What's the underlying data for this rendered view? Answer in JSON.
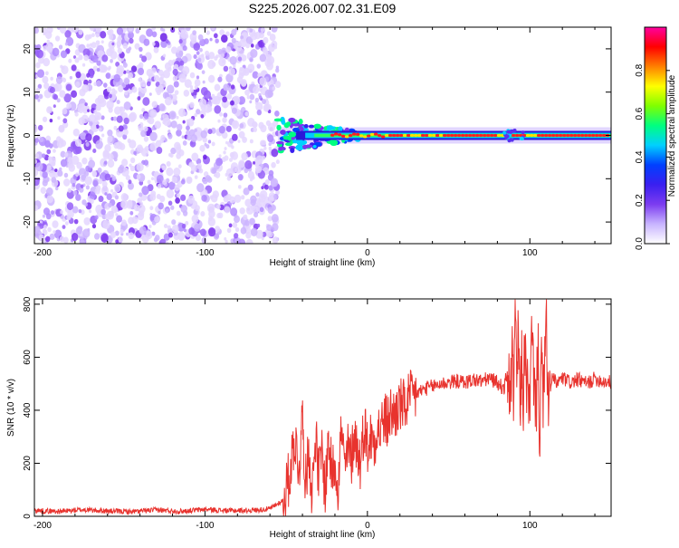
{
  "title": "S225.2026.007.02.31.E09",
  "colors": {
    "snr_line": "#e8332e",
    "axis": "#000000"
  },
  "chart_data": [
    {
      "type": "heatmap",
      "name": "spectrogram",
      "xlabel": "Height of straight line (km)",
      "ylabel": "Frequency (Hz)",
      "xlim": [
        -205,
        150
      ],
      "ylim": [
        -25,
        25
      ],
      "xticks": [
        -200,
        -100,
        0,
        100
      ],
      "yticks": [
        -20,
        -10,
        0,
        10,
        20
      ],
      "noise_region_km": [
        -205,
        -55
      ],
      "signal_start_km": -55,
      "signal_frequency_hz": 0
    },
    {
      "type": "colorbar",
      "name": "amplitude-colorbar",
      "label": "Normalized spectral amplitude",
      "range": [
        0,
        1
      ],
      "ticks": [
        0.0,
        0.2,
        0.4,
        0.6,
        0.8
      ],
      "tick_labels": [
        "0.0",
        "0.2",
        "0.4",
        "0.6",
        "0.8"
      ],
      "colormap": [
        "#ffffff",
        "#c8b4ff",
        "#7c3cf0",
        "#3a1ff0",
        "#0040ff",
        "#00d0ff",
        "#00ff80",
        "#80ff00",
        "#ffff00",
        "#ff8000",
        "#ff0000",
        "#ff00a0"
      ]
    },
    {
      "type": "line",
      "name": "snr",
      "xlabel": "Height of straight line (km)",
      "ylabel": "SNR (10 * v/v)",
      "xlim": [
        -205,
        150
      ],
      "ylim": [
        0,
        820
      ],
      "xticks": [
        -200,
        -100,
        0,
        100
      ],
      "yticks": [
        0,
        200,
        400,
        600,
        800
      ],
      "series": [
        {
          "name": "SNR",
          "x": [
            -205,
            -190,
            -175,
            -160,
            -145,
            -130,
            -115,
            -100,
            -85,
            -70,
            -60,
            -52,
            -48,
            -45,
            -42,
            -40,
            -38,
            -36,
            -34,
            -32,
            -30,
            -28,
            -26,
            -24,
            -22,
            -20,
            -18,
            -16,
            -14,
            -12,
            -10,
            -8,
            -6,
            -4,
            -2,
            0,
            2,
            4,
            6,
            8,
            10,
            12,
            14,
            16,
            18,
            20,
            22,
            24,
            26,
            28,
            30,
            32,
            35,
            40,
            45,
            50,
            55,
            60,
            65,
            70,
            75,
            80,
            84,
            86,
            88,
            89,
            90,
            91,
            92,
            93,
            94,
            95,
            96,
            97,
            98,
            99,
            100,
            101,
            102,
            103,
            104,
            105,
            106,
            107,
            108,
            109,
            110,
            111,
            112,
            113,
            114,
            116,
            118,
            120,
            125,
            130,
            135,
            140,
            145,
            150
          ],
          "values": [
            22,
            18,
            25,
            20,
            17,
            24,
            19,
            26,
            21,
            23,
            28,
            60,
            150,
            300,
            180,
            380,
            120,
            260,
            80,
            320,
            140,
            250,
            90,
            300,
            160,
            210,
            120,
            340,
            170,
            250,
            210,
            320,
            240,
            200,
            360,
            260,
            300,
            280,
            340,
            320,
            370,
            350,
            390,
            380,
            400,
            420,
            410,
            430,
            440,
            450,
            460,
            470,
            480,
            490,
            500,
            505,
            510,
            505,
            515,
            510,
            520,
            505,
            480,
            540,
            460,
            610,
            430,
            760,
            520,
            690,
            380,
            590,
            450,
            650,
            470,
            520,
            330,
            700,
            560,
            500,
            400,
            680,
            300,
            600,
            420,
            520,
            820,
            380,
            560,
            470,
            530,
            500,
            510,
            520,
            505,
            515,
            500,
            520,
            510,
            505
          ]
        }
      ]
    }
  ]
}
